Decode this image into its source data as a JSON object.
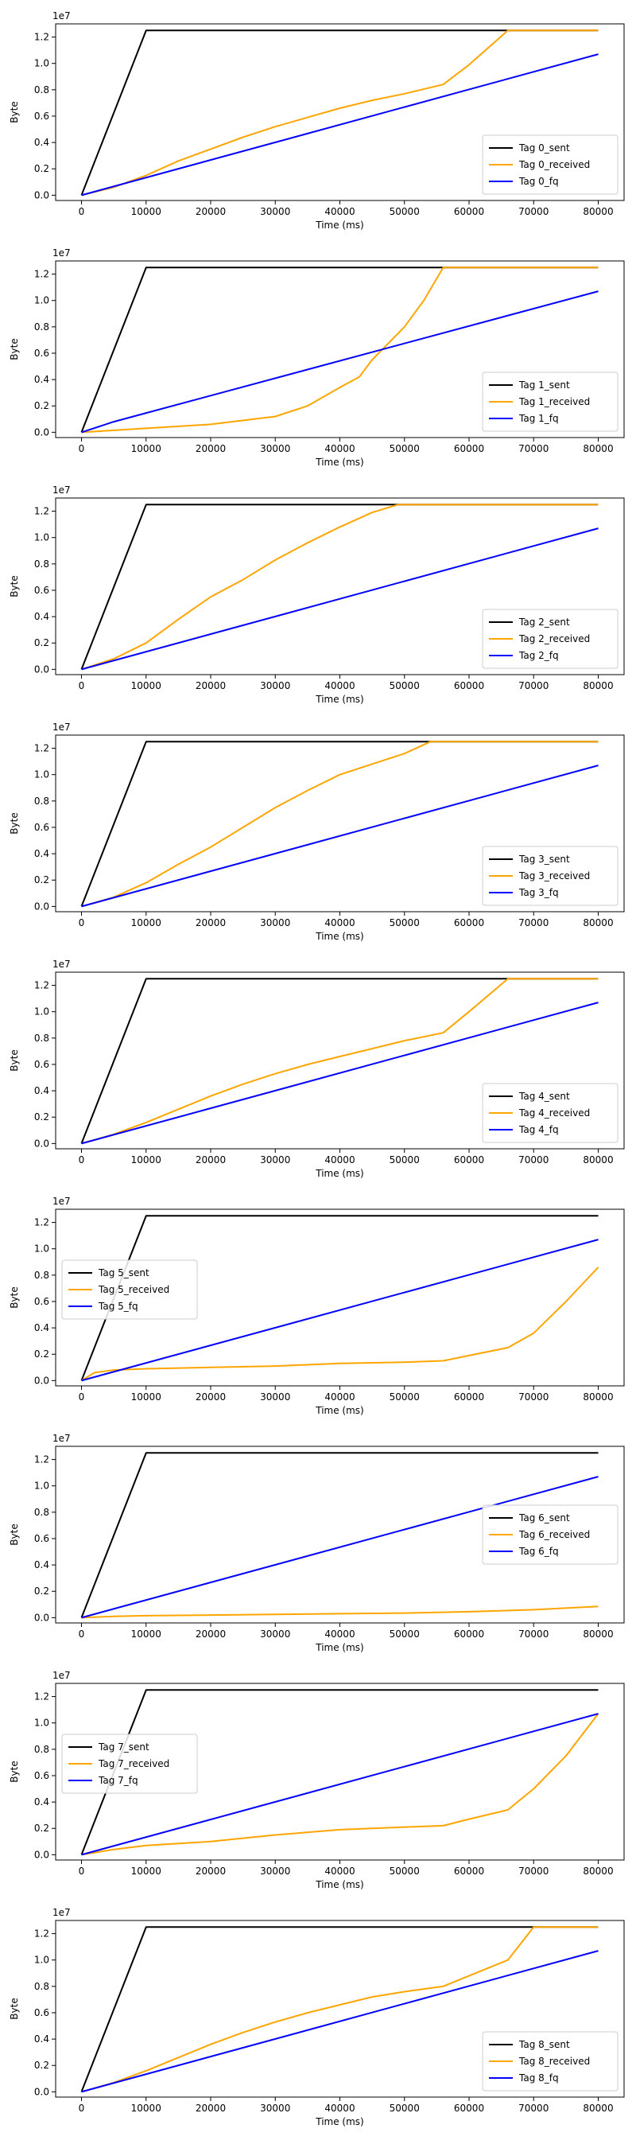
{
  "chart_data": [
    {
      "type": "line",
      "xlabel": "Time (ms)",
      "ylabel": "Byte",
      "offset_label": "1e7",
      "xlim": [
        -4000,
        84000
      ],
      "ylim": [
        -0.4,
        13
      ],
      "xticks": [
        0,
        10000,
        20000,
        30000,
        40000,
        50000,
        60000,
        70000,
        80000
      ],
      "yticks": [
        0.0,
        0.2,
        0.4,
        0.6,
        0.8,
        1.0,
        1.2
      ],
      "legend_position": "lower-right",
      "series": [
        {
          "name": "Tag 0_sent",
          "color": "#000000",
          "x": [
            0,
            10000,
            80000
          ],
          "y": [
            0,
            12.5,
            12.5
          ]
        },
        {
          "name": "Tag 0_received",
          "color": "#ffa500",
          "x": [
            0,
            5000,
            10000,
            15000,
            20000,
            25000,
            30000,
            35000,
            40000,
            45000,
            50000,
            56000,
            60000,
            66000,
            70000,
            80000
          ],
          "y": [
            0,
            0.6,
            1.5,
            2.6,
            3.5,
            4.4,
            5.2,
            5.9,
            6.6,
            7.2,
            7.7,
            8.4,
            9.9,
            12.5,
            12.5,
            12.5
          ]
        },
        {
          "name": "Tag 0_fq",
          "color": "#0000ff",
          "x": [
            0,
            80000
          ],
          "y": [
            0,
            10.7
          ]
        }
      ]
    },
    {
      "type": "line",
      "xlabel": "Time (ms)",
      "ylabel": "Byte",
      "offset_label": "1e7",
      "xlim": [
        -4000,
        84000
      ],
      "ylim": [
        -0.4,
        13
      ],
      "xticks": [
        0,
        10000,
        20000,
        30000,
        40000,
        50000,
        60000,
        70000,
        80000
      ],
      "yticks": [
        0.0,
        0.2,
        0.4,
        0.6,
        0.8,
        1.0,
        1.2
      ],
      "legend_position": "lower-right",
      "series": [
        {
          "name": "Tag 1_sent",
          "color": "#000000",
          "x": [
            0,
            10000,
            80000
          ],
          "y": [
            0,
            12.5,
            12.5
          ]
        },
        {
          "name": "Tag 1_received",
          "color": "#ffa500",
          "x": [
            0,
            10000,
            20000,
            30000,
            35000,
            40000,
            43000,
            45000,
            47000,
            50000,
            53000,
            56000,
            60000,
            70000,
            80000
          ],
          "y": [
            0,
            0.3,
            0.6,
            1.2,
            2.0,
            3.4,
            4.2,
            5.5,
            6.5,
            8.0,
            10.0,
            12.5,
            12.5,
            12.5,
            12.5
          ]
        },
        {
          "name": "Tag 1_fq",
          "color": "#0000ff",
          "x": [
            0,
            5000,
            80000
          ],
          "y": [
            0,
            0.8,
            10.7
          ]
        }
      ]
    },
    {
      "type": "line",
      "xlabel": "Time (ms)",
      "ylabel": "Byte",
      "offset_label": "1e7",
      "xlim": [
        -4000,
        84000
      ],
      "ylim": [
        -0.4,
        13
      ],
      "xticks": [
        0,
        10000,
        20000,
        30000,
        40000,
        50000,
        60000,
        70000,
        80000
      ],
      "yticks": [
        0.0,
        0.2,
        0.4,
        0.6,
        0.8,
        1.0,
        1.2
      ],
      "legend_position": "lower-right",
      "series": [
        {
          "name": "Tag 2_sent",
          "color": "#000000",
          "x": [
            0,
            10000,
            80000
          ],
          "y": [
            0,
            12.5,
            12.5
          ]
        },
        {
          "name": "Tag 2_received",
          "color": "#ffa500",
          "x": [
            0,
            5000,
            10000,
            15000,
            20000,
            25000,
            30000,
            35000,
            40000,
            45000,
            49000,
            60000,
            70000,
            80000
          ],
          "y": [
            0,
            0.8,
            2.0,
            3.8,
            5.5,
            6.8,
            8.3,
            9.6,
            10.8,
            11.9,
            12.5,
            12.5,
            12.5,
            12.5
          ]
        },
        {
          "name": "Tag 2_fq",
          "color": "#0000ff",
          "x": [
            0,
            80000
          ],
          "y": [
            0,
            10.7
          ]
        }
      ]
    },
    {
      "type": "line",
      "xlabel": "Time (ms)",
      "ylabel": "Byte",
      "offset_label": "1e7",
      "xlim": [
        -4000,
        84000
      ],
      "ylim": [
        -0.4,
        13
      ],
      "xticks": [
        0,
        10000,
        20000,
        30000,
        40000,
        50000,
        60000,
        70000,
        80000
      ],
      "yticks": [
        0.0,
        0.2,
        0.4,
        0.6,
        0.8,
        1.0,
        1.2
      ],
      "legend_position": "lower-right",
      "series": [
        {
          "name": "Tag 3_sent",
          "color": "#000000",
          "x": [
            0,
            10000,
            80000
          ],
          "y": [
            0,
            12.5,
            12.5
          ]
        },
        {
          "name": "Tag 3_received",
          "color": "#ffa500",
          "x": [
            0,
            5000,
            10000,
            15000,
            20000,
            25000,
            30000,
            35000,
            40000,
            45000,
            50000,
            54000,
            60000,
            70000,
            80000
          ],
          "y": [
            0,
            0.7,
            1.8,
            3.2,
            4.5,
            6.0,
            7.5,
            8.8,
            10.0,
            10.8,
            11.6,
            12.5,
            12.5,
            12.5,
            12.5
          ]
        },
        {
          "name": "Tag 3_fq",
          "color": "#0000ff",
          "x": [
            0,
            80000
          ],
          "y": [
            0,
            10.7
          ]
        }
      ]
    },
    {
      "type": "line",
      "xlabel": "Time (ms)",
      "ylabel": "Byte",
      "offset_label": "1e7",
      "xlim": [
        -4000,
        84000
      ],
      "ylim": [
        -0.4,
        13
      ],
      "xticks": [
        0,
        10000,
        20000,
        30000,
        40000,
        50000,
        60000,
        70000,
        80000
      ],
      "yticks": [
        0.0,
        0.2,
        0.4,
        0.6,
        0.8,
        1.0,
        1.2
      ],
      "legend_position": "lower-right",
      "series": [
        {
          "name": "Tag 4_sent",
          "color": "#000000",
          "x": [
            0,
            10000,
            80000
          ],
          "y": [
            0,
            12.5,
            12.5
          ]
        },
        {
          "name": "Tag 4_received",
          "color": "#ffa500",
          "x": [
            0,
            5000,
            10000,
            15000,
            20000,
            25000,
            30000,
            35000,
            40000,
            45000,
            50000,
            56000,
            60000,
            66000,
            70000,
            80000
          ],
          "y": [
            0,
            0.7,
            1.6,
            2.6,
            3.6,
            4.5,
            5.3,
            6.0,
            6.6,
            7.2,
            7.8,
            8.4,
            10.0,
            12.5,
            12.5,
            12.5
          ]
        },
        {
          "name": "Tag 4_fq",
          "color": "#0000ff",
          "x": [
            0,
            80000
          ],
          "y": [
            0,
            10.7
          ]
        }
      ]
    },
    {
      "type": "line",
      "xlabel": "Time (ms)",
      "ylabel": "Byte",
      "offset_label": "1e7",
      "xlim": [
        -4000,
        84000
      ],
      "ylim": [
        -0.4,
        13
      ],
      "xticks": [
        0,
        10000,
        20000,
        30000,
        40000,
        50000,
        60000,
        70000,
        80000
      ],
      "yticks": [
        0.0,
        0.2,
        0.4,
        0.6,
        0.8,
        1.0,
        1.2
      ],
      "legend_position": "center-left",
      "series": [
        {
          "name": "Tag 5_sent",
          "color": "#000000",
          "x": [
            0,
            10000,
            80000
          ],
          "y": [
            0,
            12.5,
            12.5
          ]
        },
        {
          "name": "Tag 5_received",
          "color": "#ffa500",
          "x": [
            0,
            2000,
            5000,
            10000,
            20000,
            30000,
            40000,
            50000,
            56000,
            60000,
            66000,
            70000,
            75000,
            80000
          ],
          "y": [
            0,
            0.6,
            0.8,
            0.9,
            1.0,
            1.1,
            1.3,
            1.4,
            1.5,
            1.9,
            2.5,
            3.6,
            6.0,
            8.6
          ]
        },
        {
          "name": "Tag 5_fq",
          "color": "#0000ff",
          "x": [
            0,
            80000
          ],
          "y": [
            0,
            10.7
          ]
        }
      ]
    },
    {
      "type": "line",
      "xlabel": "Time (ms)",
      "ylabel": "Byte",
      "offset_label": "1e7",
      "xlim": [
        -4000,
        84000
      ],
      "ylim": [
        -0.4,
        13
      ],
      "xticks": [
        0,
        10000,
        20000,
        30000,
        40000,
        50000,
        60000,
        70000,
        80000
      ],
      "yticks": [
        0.0,
        0.2,
        0.4,
        0.6,
        0.8,
        1.0,
        1.2
      ],
      "legend_position": "center-right",
      "series": [
        {
          "name": "Tag 6_sent",
          "color": "#000000",
          "x": [
            0,
            10000,
            80000
          ],
          "y": [
            0,
            12.5,
            12.5
          ]
        },
        {
          "name": "Tag 6_received",
          "color": "#ffa500",
          "x": [
            0,
            5000,
            10000,
            20000,
            30000,
            40000,
            50000,
            60000,
            70000,
            80000
          ],
          "y": [
            0,
            0.1,
            0.15,
            0.2,
            0.25,
            0.3,
            0.35,
            0.45,
            0.6,
            0.85
          ]
        },
        {
          "name": "Tag 6_fq",
          "color": "#0000ff",
          "x": [
            0,
            80000
          ],
          "y": [
            0,
            10.7
          ]
        }
      ]
    },
    {
      "type": "line",
      "xlabel": "Time (ms)",
      "ylabel": "Byte",
      "offset_label": "1e7",
      "xlim": [
        -4000,
        84000
      ],
      "ylim": [
        -0.4,
        13
      ],
      "xticks": [
        0,
        10000,
        20000,
        30000,
        40000,
        50000,
        60000,
        70000,
        80000
      ],
      "yticks": [
        0.0,
        0.2,
        0.4,
        0.6,
        0.8,
        1.0,
        1.2
      ],
      "legend_position": "center-left",
      "series": [
        {
          "name": "Tag 7_sent",
          "color": "#000000",
          "x": [
            0,
            10000,
            80000
          ],
          "y": [
            0,
            12.5,
            12.5
          ]
        },
        {
          "name": "Tag 7_received",
          "color": "#ffa500",
          "x": [
            0,
            5000,
            10000,
            20000,
            30000,
            40000,
            50000,
            56000,
            60000,
            66000,
            70000,
            75000,
            80000
          ],
          "y": [
            0,
            0.4,
            0.7,
            1.0,
            1.5,
            1.9,
            2.1,
            2.2,
            2.7,
            3.4,
            5.0,
            7.5,
            10.7
          ]
        },
        {
          "name": "Tag 7_fq",
          "color": "#0000ff",
          "x": [
            0,
            80000
          ],
          "y": [
            0,
            10.7
          ]
        }
      ]
    },
    {
      "type": "line",
      "xlabel": "Time (ms)",
      "ylabel": "Byte",
      "offset_label": "1e7",
      "xlim": [
        -4000,
        84000
      ],
      "ylim": [
        -0.4,
        13
      ],
      "xticks": [
        0,
        10000,
        20000,
        30000,
        40000,
        50000,
        60000,
        70000,
        80000
      ],
      "yticks": [
        0.0,
        0.2,
        0.4,
        0.6,
        0.8,
        1.0,
        1.2
      ],
      "legend_position": "lower-right",
      "series": [
        {
          "name": "Tag 8_sent",
          "color": "#000000",
          "x": [
            0,
            10000,
            80000
          ],
          "y": [
            0,
            12.5,
            12.5
          ]
        },
        {
          "name": "Tag 8_received",
          "color": "#ffa500",
          "x": [
            0,
            5000,
            10000,
            15000,
            20000,
            25000,
            30000,
            35000,
            40000,
            45000,
            50000,
            56000,
            60000,
            66000,
            70000,
            80000
          ],
          "y": [
            0,
            0.7,
            1.6,
            2.6,
            3.6,
            4.5,
            5.3,
            6.0,
            6.6,
            7.2,
            7.6,
            8.0,
            8.8,
            10.0,
            12.5,
            12.5
          ]
        },
        {
          "name": "Tag 8_fq",
          "color": "#0000ff",
          "x": [
            0,
            80000
          ],
          "y": [
            0,
            10.7
          ]
        }
      ]
    }
  ]
}
